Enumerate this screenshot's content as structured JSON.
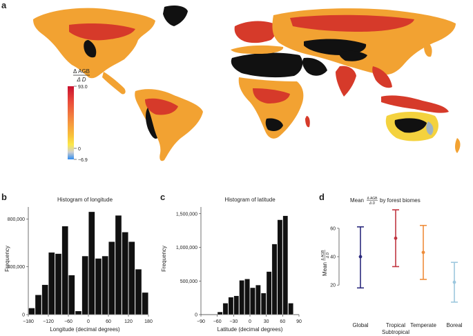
{
  "panels": {
    "a": {
      "letter": "a",
      "legend": {
        "title_num": "Δ AGB",
        "title_den": "Δ D",
        "max_label": "93.0",
        "zero_label": "0",
        "min_label": "−6.9",
        "colors": [
          "#c8102e",
          "#e9483a",
          "#f48a3f",
          "#f9c33a",
          "#fbe84a",
          "#cfcfcf",
          "#2f8cf0"
        ]
      },
      "map_colors": {
        "land_dark": "#111111",
        "land_warm": "#f2a232",
        "land_hot": "#d63a2a",
        "land_yellow": "#f4d23e",
        "land_grey": "#9fb3c2"
      }
    },
    "b": {
      "letter": "b",
      "chart_data": {
        "type": "bar",
        "title": "Histogram of longitude",
        "xlabel": "Longitude (decimal degrees)",
        "ylabel": "Frequency",
        "x_ticks": [
          "−180",
          "−120",
          "−60",
          "0",
          "60",
          "120",
          "180"
        ],
        "y_ticks": [
          "0",
          "400,000",
          "800,000"
        ],
        "xlim": [
          -180,
          180
        ],
        "ylim": [
          0,
          900000
        ],
        "bin_width": 20,
        "bin_starts": [
          -180,
          -160,
          -140,
          -120,
          -100,
          -80,
          -60,
          -40,
          -20,
          0,
          20,
          40,
          60,
          80,
          100,
          120,
          140,
          160
        ],
        "values": [
          55000,
          165000,
          250000,
          520000,
          510000,
          740000,
          330000,
          30000,
          490000,
          860000,
          470000,
          490000,
          610000,
          830000,
          690000,
          610000,
          380000,
          185000
        ],
        "bar_color": "#111111"
      }
    },
    "c": {
      "letter": "c",
      "chart_data": {
        "type": "bar",
        "title": "Histogram of latitude",
        "xlabel": "Latitude (decimal degrees)",
        "ylabel": "Frequency",
        "x_ticks": [
          "−90",
          "−60",
          "−30",
          "0",
          "30",
          "60",
          "90"
        ],
        "y_ticks": [
          "0",
          "500,000",
          "1,000,000",
          "1,500,000"
        ],
        "xlim": [
          -90,
          90
        ],
        "ylim": [
          0,
          1600000
        ],
        "bin_width": 10,
        "bin_starts": [
          -60,
          -50,
          -40,
          -30,
          -20,
          -10,
          0,
          10,
          20,
          30,
          40,
          50,
          60,
          70
        ],
        "values": [
          40000,
          170000,
          260000,
          280000,
          510000,
          530000,
          400000,
          440000,
          320000,
          640000,
          1050000,
          1410000,
          1470000,
          170000
        ],
        "bar_color": "#111111"
      }
    },
    "d": {
      "letter": "d",
      "chart_data": {
        "type": "scatter",
        "title_prefix": "Mean",
        "title_num": "Δ AGB",
        "title_den": "Δ D",
        "title_suffix": "by forest biomes",
        "ylabel_prefix": "Mean",
        "ylabel_num": "Δ AGB",
        "ylabel_den": "Δ D",
        "y_ticks": [
          "20",
          "40",
          "60"
        ],
        "ylim": [
          6,
          75
        ],
        "categories": [
          "Global",
          "Tropical\nSubtropical",
          "Temperate",
          "Boreal"
        ],
        "means": [
          40,
          53,
          43,
          22
        ],
        "lower": [
          18,
          33,
          24,
          8
        ],
        "upper": [
          61,
          73,
          62,
          36
        ],
        "colors": [
          "#2c2a7d",
          "#c0343f",
          "#ee8c3a",
          "#9cc7de"
        ]
      }
    }
  }
}
